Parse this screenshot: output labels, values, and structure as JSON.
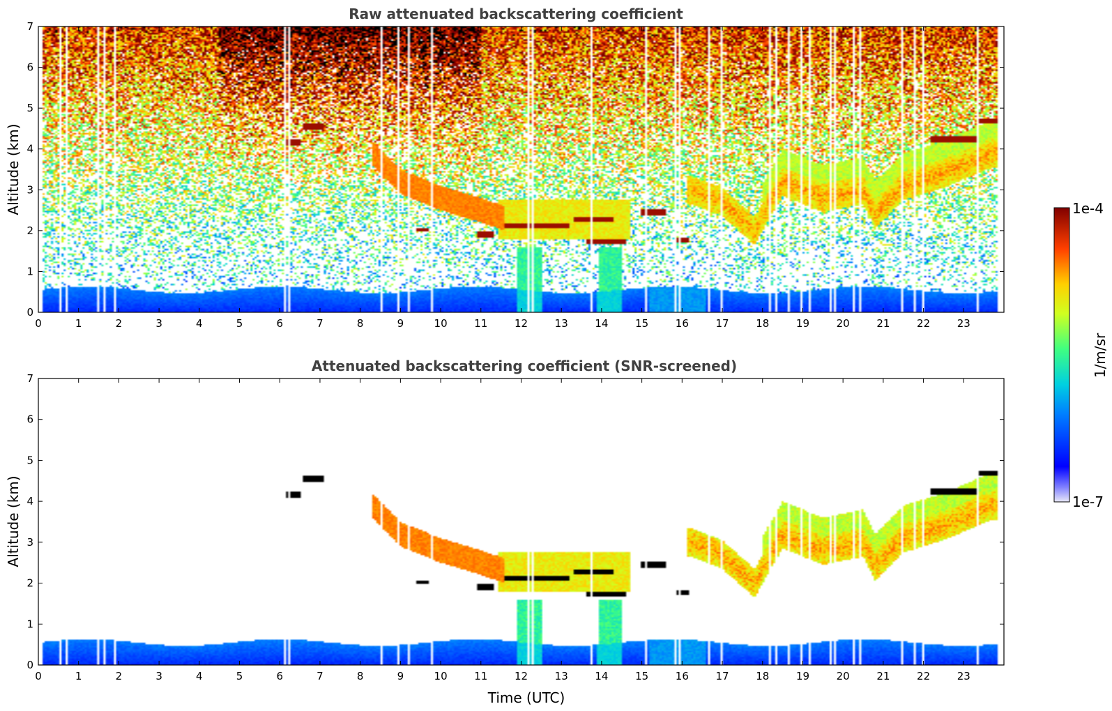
{
  "chart_data": [
    {
      "type": "heatmap",
      "title": "Raw attenuated backscattering coefficient",
      "xlabel": "",
      "ylabel": "Altitude (km)",
      "xlim": [
        0,
        24
      ],
      "ylim": [
        0,
        7
      ],
      "xticks": [
        "0",
        "1",
        "2",
        "3",
        "4",
        "5",
        "6",
        "7",
        "8",
        "9",
        "10",
        "11",
        "12",
        "13",
        "14",
        "15",
        "16",
        "17",
        "18",
        "19",
        "20",
        "21",
        "22",
        "23"
      ],
      "yticks": [
        "0",
        "1",
        "2",
        "3",
        "4",
        "5",
        "6",
        "7"
      ],
      "features": {
        "boundary_layer_top_km": 0.55,
        "aerosol_layer": [
          [
            16.2,
            3.0
          ],
          [
            17.0,
            2.7
          ],
          [
            17.8,
            2.0
          ],
          [
            18.5,
            3.2
          ],
          [
            19.5,
            2.8
          ],
          [
            20.5,
            3.0
          ],
          [
            20.8,
            2.4
          ],
          [
            21.5,
            3.1
          ],
          [
            22.5,
            3.4
          ],
          [
            23.7,
            3.9
          ]
        ],
        "clouds": [
          [
            6.2,
            4.1
          ],
          [
            7.0,
            4.6
          ],
          [
            9.5,
            2.0
          ],
          [
            11.0,
            1.9
          ],
          [
            12.5,
            2.1
          ],
          [
            13.5,
            2.3
          ],
          [
            14.5,
            1.7
          ],
          [
            15.3,
            2.4
          ],
          [
            16.0,
            1.75
          ],
          [
            22.5,
            4.2
          ],
          [
            23.5,
            4.7
          ]
        ]
      }
    },
    {
      "type": "heatmap",
      "title": "Attenuated backscattering coefficient (SNR-screened)",
      "xlabel": "Time (UTC)",
      "ylabel": "Altitude (km)",
      "xlim": [
        0,
        24
      ],
      "ylim": [
        0,
        7
      ],
      "xticks": [
        "0",
        "1",
        "2",
        "3",
        "4",
        "5",
        "6",
        "7",
        "8",
        "9",
        "10",
        "11",
        "12",
        "13",
        "14",
        "15",
        "16",
        "17",
        "18",
        "19",
        "20",
        "21",
        "22",
        "23"
      ],
      "yticks": [
        "0",
        "1",
        "2",
        "3",
        "4",
        "5",
        "6",
        "7"
      ],
      "colorbar": {
        "label": "1/m/sr",
        "max_label": "1e-4",
        "min_label": "1e-7",
        "min": 1e-07,
        "max": 0.0001,
        "scale": "log",
        "colormap": "jet"
      }
    }
  ]
}
